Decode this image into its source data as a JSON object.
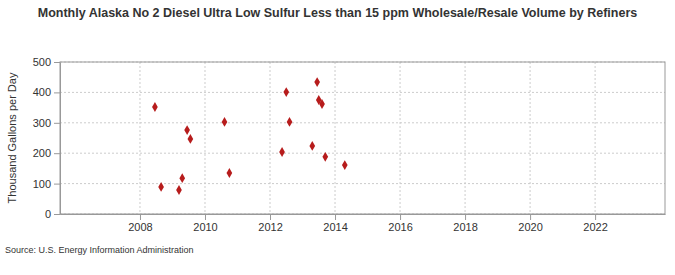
{
  "chart_data": {
    "type": "scatter",
    "title": "Monthly Alaska No 2 Diesel Ultra Low Sulfur Less than 15 ppm Wholesale/Resale Volume by Refiners",
    "y_label": "Thousand Gallons per Day",
    "source": "Source: U.S. Energy Information Administration",
    "x": [
      2008.46,
      2008.65,
      2009.2,
      2009.3,
      2009.45,
      2009.55,
      2010.6,
      2010.75,
      2012.37,
      2012.5,
      2012.6,
      2013.3,
      2013.45,
      2013.5,
      2013.6,
      2013.7,
      2014.3
    ],
    "values": [
      352,
      89,
      79,
      118,
      276,
      247,
      303,
      135,
      204,
      401,
      303,
      224,
      434,
      375,
      362,
      188,
      161
    ],
    "color": "#b71c1c",
    "marker": "diamond",
    "xlim": [
      2005.54,
      2024.15
    ],
    "xticks": [
      2008,
      2010,
      2012,
      2014,
      2016,
      2018,
      2020,
      2022
    ],
    "ylim": [
      0,
      500
    ],
    "yticks": [
      0,
      100,
      200,
      300,
      400,
      500
    ],
    "grid": true
  }
}
